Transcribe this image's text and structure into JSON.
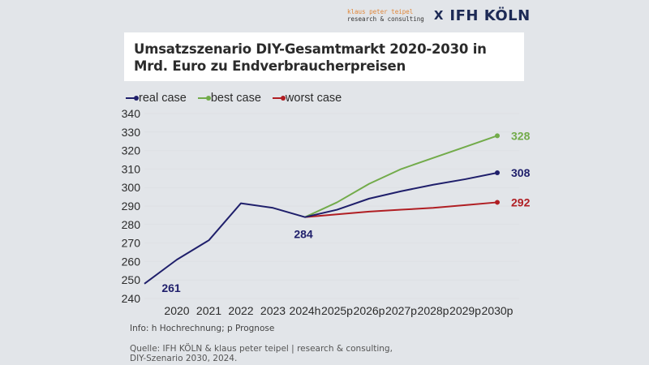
{
  "logo": {
    "partner_line1": "klaus peter teipel",
    "partner_line2": "research & consulting",
    "separator": "X",
    "brand": "IFH KÖLN"
  },
  "colors": {
    "real_case": "#1f1f6b",
    "best_case": "#72ab4a",
    "worst_case": "#b01e23",
    "background": "#e2e5e9",
    "gridline": "#dde0e4"
  },
  "chart_data": {
    "type": "line",
    "title": "Umsatzszenario DIY-Gesamtmarkt 2020-2030 in Mrd. Euro zu Endverbraucherpreisen",
    "xlabel": "",
    "ylabel": "",
    "categories": [
      "2020",
      "2021",
      "2022",
      "2023",
      "2024h",
      "2025p",
      "2026p",
      "2027p",
      "2028p",
      "2029p",
      "2030p"
    ],
    "yticks": [
      "240",
      "250",
      "260",
      "270",
      "280",
      "290",
      "300",
      "310",
      "320",
      "330",
      "340"
    ],
    "ylim": [
      240,
      340
    ],
    "grid": true,
    "legend_position": "top-left",
    "leading_value_real_case": 248,
    "series": [
      {
        "name": "real case",
        "key": "real",
        "values": [
          261,
          271.5,
          291.5,
          289,
          284,
          288,
          294,
          298,
          301.5,
          304.5,
          308
        ]
      },
      {
        "name": "best case",
        "key": "best",
        "values": [
          null,
          null,
          null,
          null,
          284,
          292,
          302,
          310,
          316,
          322,
          328
        ]
      },
      {
        "name": "worst case",
        "key": "worst",
        "values": [
          null,
          null,
          null,
          null,
          284,
          285.5,
          287,
          288,
          289,
          290.5,
          292
        ]
      }
    ],
    "annotations": [
      {
        "series": "real",
        "index": 0,
        "label": "261"
      },
      {
        "series": "real",
        "index": 4,
        "label": "284"
      },
      {
        "series": "best",
        "index": 10,
        "label": "328"
      },
      {
        "series": "real",
        "index": 10,
        "label": "308"
      },
      {
        "series": "worst",
        "index": 10,
        "label": "292"
      }
    ]
  },
  "legend": [
    {
      "label": "real case",
      "key": "real"
    },
    {
      "label": "best case",
      "key": "best"
    },
    {
      "label": "worst case",
      "key": "worst"
    }
  ],
  "footer": {
    "info": "Info: h Hochrechnung; p Prognose",
    "source_line1": "Quelle: IFH KÖLN & klaus peter teipel | research & consulting,",
    "source_line2": "DIY-Szenario 2030, 2024."
  }
}
